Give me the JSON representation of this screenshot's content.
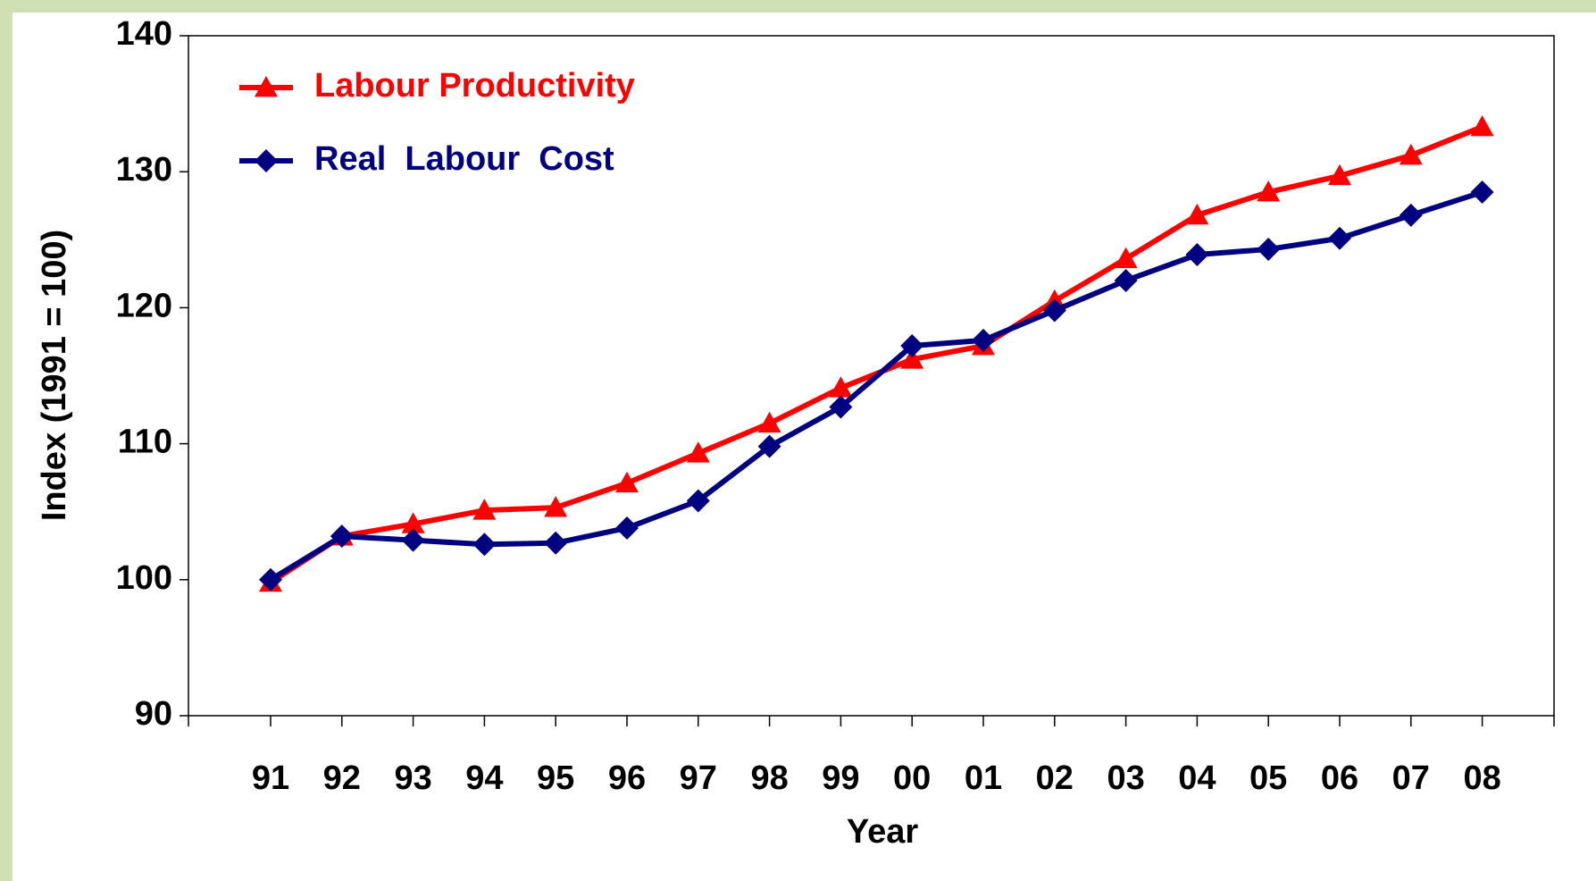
{
  "chart_data": {
    "type": "line",
    "x_label": "Year",
    "y_label": "Index (1991 = 100)",
    "categories": [
      "91",
      "92",
      "93",
      "94",
      "95",
      "96",
      "97",
      "98",
      "99",
      "00",
      "01",
      "02",
      "03",
      "04",
      "05",
      "06",
      "07",
      "08"
    ],
    "series": [
      {
        "name": "Labour Productivity",
        "color": "#ff0000",
        "marker": "triangle",
        "values": [
          99.8,
          103.2,
          104.1,
          105.1,
          105.3,
          107.1,
          109.3,
          111.5,
          114.1,
          116.2,
          117.2,
          120.5,
          123.6,
          126.8,
          128.5,
          129.7,
          131.2,
          133.3
        ]
      },
      {
        "name": "Real  Labour  Cost",
        "color": "#000080",
        "marker": "diamond",
        "values": [
          100,
          103.2,
          102.9,
          102.6,
          102.7,
          103.8,
          105.8,
          109.8,
          112.7,
          117.2,
          117.6,
          119.8,
          122.0,
          123.9,
          124.3,
          125.1,
          126.8,
          128.5
        ]
      }
    ],
    "ylim": [
      90,
      140
    ],
    "yticks": [
      90,
      100,
      110,
      120,
      130,
      140
    ],
    "legend": "upper left",
    "grid": false
  }
}
